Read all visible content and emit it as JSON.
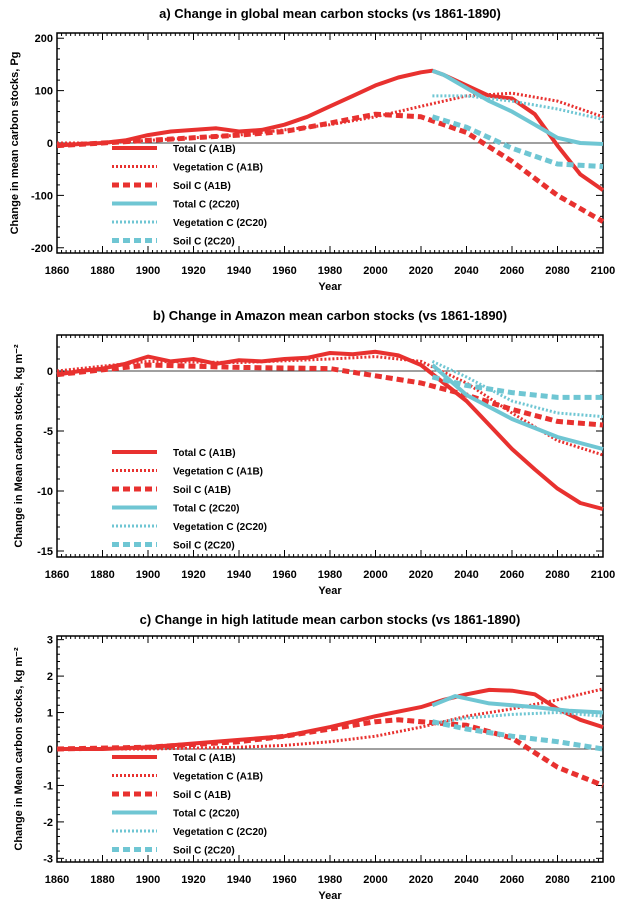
{
  "colors": {
    "a1b": "#e8312f",
    "c2c20": "#6fc6d3"
  },
  "chart_data": [
    {
      "type": "line",
      "title": "a) Change in global mean carbon stocks (vs 1861-1890)",
      "xlabel": "Year",
      "ylabel": "Change in mean carbon stocks, Pg",
      "xlim": [
        1860,
        2100
      ],
      "ylim": [
        -210,
        210
      ],
      "xticks": [
        1860,
        1880,
        1900,
        1920,
        1940,
        1960,
        1980,
        2000,
        2020,
        2040,
        2060,
        2080,
        2100
      ],
      "yticks": [
        -200,
        -100,
        0,
        100,
        200
      ],
      "legend": "lower-left",
      "series": [
        {
          "name": "Total C (A1B)",
          "color": "#e8312f",
          "style": "solid",
          "x": [
            1860,
            1870,
            1880,
            1890,
            1900,
            1910,
            1920,
            1930,
            1940,
            1950,
            1960,
            1970,
            1980,
            1990,
            2000,
            2010,
            2020,
            2025,
            2030,
            2040,
            2050,
            2060,
            2070,
            2080,
            2090,
            2100
          ],
          "y": [
            -5,
            -2,
            0,
            5,
            15,
            22,
            25,
            28,
            22,
            25,
            35,
            50,
            70,
            90,
            110,
            125,
            135,
            138,
            130,
            110,
            90,
            85,
            55,
            -5,
            -60,
            -90
          ]
        },
        {
          "name": "Vegetation C (A1B)",
          "color": "#e8312f",
          "style": "dotted",
          "x": [
            1860,
            1880,
            1900,
            1920,
            1940,
            1960,
            1980,
            2000,
            2020,
            2040,
            2060,
            2080,
            2100
          ],
          "y": [
            0,
            0,
            5,
            10,
            15,
            25,
            35,
            50,
            70,
            90,
            95,
            80,
            50
          ]
        },
        {
          "name": "Soil C (A1B)",
          "color": "#e8312f",
          "style": "dashed",
          "x": [
            1860,
            1880,
            1900,
            1920,
            1940,
            1960,
            1980,
            2000,
            2020,
            2030,
            2040,
            2060,
            2080,
            2100
          ],
          "y": [
            -5,
            0,
            5,
            10,
            15,
            22,
            38,
            55,
            50,
            35,
            20,
            -35,
            -100,
            -150
          ]
        },
        {
          "name": "Total C (2C20)",
          "color": "#6fc6d3",
          "style": "solid",
          "x": [
            2025,
            2030,
            2040,
            2050,
            2060,
            2070,
            2080,
            2090,
            2100
          ],
          "y": [
            138,
            130,
            105,
            80,
            60,
            35,
            10,
            0,
            -2
          ]
        },
        {
          "name": "Vegetation C (2C20)",
          "color": "#6fc6d3",
          "style": "dotted",
          "x": [
            2025,
            2040,
            2060,
            2080,
            2100
          ],
          "y": [
            90,
            90,
            80,
            65,
            45
          ]
        },
        {
          "name": "Soil C (2C20)",
          "color": "#6fc6d3",
          "style": "dashed",
          "x": [
            2025,
            2040,
            2060,
            2080,
            2100
          ],
          "y": [
            50,
            30,
            -10,
            -40,
            -45
          ]
        }
      ]
    },
    {
      "type": "line",
      "title": "b) Change in Amazon mean carbon stocks (vs 1861-1890)",
      "xlabel": "Year",
      "ylabel": "Change in Mean carbon stocks, kg m⁻²",
      "xlim": [
        1860,
        2100
      ],
      "ylim": [
        -15.5,
        3
      ],
      "xticks": [
        1860,
        1880,
        1900,
        1920,
        1940,
        1960,
        1980,
        2000,
        2020,
        2040,
        2060,
        2080,
        2100
      ],
      "yticks": [
        -15,
        -10,
        -5,
        0
      ],
      "legend": "lower-left",
      "series": [
        {
          "name": "Total C (A1B)",
          "color": "#e8312f",
          "style": "solid",
          "x": [
            1860,
            1870,
            1880,
            1890,
            1900,
            1910,
            1920,
            1930,
            1940,
            1950,
            1960,
            1970,
            1980,
            1990,
            2000,
            2010,
            2020,
            2030,
            2040,
            2050,
            2060,
            2070,
            2080,
            2090,
            2100
          ],
          "y": [
            -0.3,
            0,
            0.2,
            0.6,
            1.2,
            0.8,
            1.0,
            0.6,
            0.9,
            0.8,
            1.0,
            1.1,
            1.5,
            1.4,
            1.6,
            1.3,
            0.5,
            -1.0,
            -2.5,
            -4.5,
            -6.5,
            -8.2,
            -9.8,
            -11.0,
            -11.5
          ]
        },
        {
          "name": "Vegetation C (A1B)",
          "color": "#e8312f",
          "style": "dotted",
          "x": [
            1860,
            1900,
            1940,
            1980,
            2000,
            2020,
            2040,
            2060,
            2080,
            2100
          ],
          "y": [
            0,
            0.8,
            0.7,
            1.0,
            1.2,
            0.8,
            -1.0,
            -3.5,
            -5.8,
            -7.0
          ]
        },
        {
          "name": "Soil C (A1B)",
          "color": "#e8312f",
          "style": "dashed",
          "x": [
            1860,
            1900,
            1940,
            1980,
            2000,
            2020,
            2040,
            2060,
            2080,
            2100
          ],
          "y": [
            -0.3,
            0.5,
            0.3,
            0.2,
            -0.4,
            -1.0,
            -2.0,
            -3.2,
            -4.2,
            -4.5
          ]
        },
        {
          "name": "Total C (2C20)",
          "color": "#6fc6d3",
          "style": "solid",
          "x": [
            2025,
            2040,
            2060,
            2080,
            2100
          ],
          "y": [
            0.5,
            -2.0,
            -4.0,
            -5.5,
            -6.5
          ]
        },
        {
          "name": "Vegetation C (2C20)",
          "color": "#6fc6d3",
          "style": "dotted",
          "x": [
            2025,
            2040,
            2060,
            2080,
            2100
          ],
          "y": [
            0.8,
            -0.5,
            -2.5,
            -3.5,
            -3.8
          ]
        },
        {
          "name": "Soil C (2C20)",
          "color": "#6fc6d3",
          "style": "dashed",
          "x": [
            2025,
            2040,
            2060,
            2080,
            2100
          ],
          "y": [
            -0.5,
            -1.2,
            -1.8,
            -2.2,
            -2.2
          ]
        }
      ]
    },
    {
      "type": "line",
      "title": "c) Change in high latitude mean carbon stocks (vs 1861-1890)",
      "xlabel": "Year",
      "ylabel": "Change in Mean carbon stocks, kg m⁻²",
      "xlim": [
        1860,
        2100
      ],
      "ylim": [
        -3.1,
        3.1
      ],
      "xticks": [
        1860,
        1880,
        1900,
        1920,
        1940,
        1960,
        1980,
        2000,
        2020,
        2040,
        2060,
        2080,
        2100
      ],
      "yticks": [
        -3,
        -2,
        -1,
        0,
        1,
        2,
        3
      ],
      "legend": "lower-left",
      "series": [
        {
          "name": "Total C (A1B)",
          "color": "#e8312f",
          "style": "solid",
          "x": [
            1860,
            1880,
            1900,
            1920,
            1940,
            1960,
            1980,
            2000,
            2020,
            2030,
            2040,
            2050,
            2060,
            2070,
            2080,
            2090,
            2100
          ],
          "y": [
            0,
            0,
            0.05,
            0.15,
            0.25,
            0.35,
            0.6,
            0.9,
            1.15,
            1.35,
            1.5,
            1.62,
            1.6,
            1.5,
            1.1,
            0.8,
            0.6
          ]
        },
        {
          "name": "Vegetation C (A1B)",
          "color": "#e8312f",
          "style": "dotted",
          "x": [
            1860,
            1900,
            1940,
            1960,
            1980,
            2000,
            2020,
            2040,
            2060,
            2080,
            2100
          ],
          "y": [
            0,
            0,
            0.05,
            0.1,
            0.2,
            0.35,
            0.6,
            0.9,
            1.1,
            1.35,
            1.65
          ]
        },
        {
          "name": "Soil C (A1B)",
          "color": "#e8312f",
          "style": "dashed",
          "x": [
            1860,
            1900,
            1940,
            1960,
            1980,
            2000,
            2010,
            2020,
            2040,
            2060,
            2080,
            2100
          ],
          "y": [
            0,
            0.05,
            0.2,
            0.35,
            0.55,
            0.75,
            0.8,
            0.75,
            0.65,
            0.3,
            -0.5,
            -1.0
          ]
        },
        {
          "name": "Total C (2C20)",
          "color": "#6fc6d3",
          "style": "solid",
          "x": [
            2025,
            2035,
            2050,
            2070,
            2085,
            2100
          ],
          "y": [
            1.2,
            1.45,
            1.25,
            1.15,
            1.05,
            1.0
          ]
        },
        {
          "name": "Vegetation C (2C20)",
          "color": "#6fc6d3",
          "style": "dotted",
          "x": [
            2025,
            2040,
            2060,
            2080,
            2100
          ],
          "y": [
            0.7,
            0.85,
            0.95,
            1.0,
            0.9
          ]
        },
        {
          "name": "Soil C (2C20)",
          "color": "#6fc6d3",
          "style": "dashed",
          "x": [
            2025,
            2040,
            2060,
            2080,
            2100
          ],
          "y": [
            0.75,
            0.55,
            0.35,
            0.2,
            0.0
          ]
        }
      ]
    }
  ]
}
